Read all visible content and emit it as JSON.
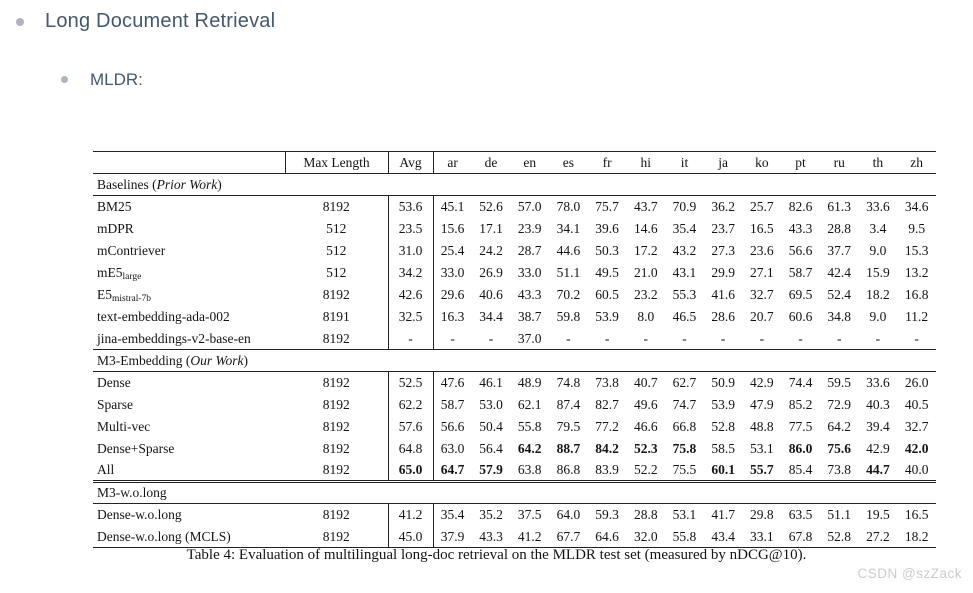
{
  "page": {
    "heading": "Long Document Retrieval",
    "subheading": "MLDR:",
    "watermark": "CSDN @szZack"
  },
  "table": {
    "caption": "Table 4: Evaluation of multilingual long-doc retrieval on the MLDR test set (measured by nDCG@10).",
    "header": {
      "model": "",
      "max_length": "Max Length",
      "avg": "Avg",
      "languages": [
        "ar",
        "de",
        "en",
        "es",
        "fr",
        "hi",
        "it",
        "ja",
        "ko",
        "pt",
        "ru",
        "th",
        "zh"
      ]
    },
    "sections": [
      {
        "label_pre": "Baselines (",
        "label_italic": "Prior Work",
        "label_post": ")",
        "double_rule_top": false,
        "rows": [
          {
            "name": "BM25",
            "sub": "",
            "max_length": "8192",
            "values": [
              "53.6",
              "45.1",
              "52.6",
              "57.0",
              "78.0",
              "75.7",
              "43.7",
              "70.9",
              "36.2",
              "25.7",
              "82.6",
              "61.3",
              "33.6",
              "34.6"
            ],
            "bold": []
          },
          {
            "name": "mDPR",
            "sub": "",
            "max_length": "512",
            "values": [
              "23.5",
              "15.6",
              "17.1",
              "23.9",
              "34.1",
              "39.6",
              "14.6",
              "35.4",
              "23.7",
              "16.5",
              "43.3",
              "28.8",
              "3.4",
              "9.5"
            ],
            "bold": []
          },
          {
            "name": "mContriever",
            "sub": "",
            "max_length": "512",
            "values": [
              "31.0",
              "25.4",
              "24.2",
              "28.7",
              "44.6",
              "50.3",
              "17.2",
              "43.2",
              "27.3",
              "23.6",
              "56.6",
              "37.7",
              "9.0",
              "15.3"
            ],
            "bold": []
          },
          {
            "name": "mE5",
            "sub": "large",
            "max_length": "512",
            "values": [
              "34.2",
              "33.0",
              "26.9",
              "33.0",
              "51.1",
              "49.5",
              "21.0",
              "43.1",
              "29.9",
              "27.1",
              "58.7",
              "42.4",
              "15.9",
              "13.2"
            ],
            "bold": []
          },
          {
            "name": "E5",
            "sub": "mistral-7b",
            "max_length": "8192",
            "values": [
              "42.6",
              "29.6",
              "40.6",
              "43.3",
              "70.2",
              "60.5",
              "23.2",
              "55.3",
              "41.6",
              "32.7",
              "69.5",
              "52.4",
              "18.2",
              "16.8"
            ],
            "bold": []
          },
          {
            "name": "text-embedding-ada-002",
            "sub": "",
            "max_length": "8191",
            "values": [
              "32.5",
              "16.3",
              "34.4",
              "38.7",
              "59.8",
              "53.9",
              "8.0",
              "46.5",
              "28.6",
              "20.7",
              "60.6",
              "34.8",
              "9.0",
              "11.2"
            ],
            "bold": []
          },
          {
            "name": "jina-embeddings-v2-base-en",
            "sub": "",
            "max_length": "8192",
            "values": [
              "-",
              "-",
              "-",
              "37.0",
              "-",
              "-",
              "-",
              "-",
              "-",
              "-",
              "-",
              "-",
              "-",
              "-"
            ],
            "bold": []
          }
        ]
      },
      {
        "label_pre": "M3-Embedding (",
        "label_italic": "Our Work",
        "label_post": ")",
        "double_rule_top": false,
        "rows": [
          {
            "name": "Dense",
            "sub": "",
            "max_length": "8192",
            "values": [
              "52.5",
              "47.6",
              "46.1",
              "48.9",
              "74.8",
              "73.8",
              "40.7",
              "62.7",
              "50.9",
              "42.9",
              "74.4",
              "59.5",
              "33.6",
              "26.0"
            ],
            "bold": []
          },
          {
            "name": "Sparse",
            "sub": "",
            "max_length": "8192",
            "values": [
              "62.2",
              "58.7",
              "53.0",
              "62.1",
              "87.4",
              "82.7",
              "49.6",
              "74.7",
              "53.9",
              "47.9",
              "85.2",
              "72.9",
              "40.3",
              "40.5"
            ],
            "bold": []
          },
          {
            "name": "Multi-vec",
            "sub": "",
            "max_length": "8192",
            "values": [
              "57.6",
              "56.6",
              "50.4",
              "55.8",
              "79.5",
              "77.2",
              "46.6",
              "66.8",
              "52.8",
              "48.8",
              "77.5",
              "64.2",
              "39.4",
              "32.7"
            ],
            "bold": []
          },
          {
            "name": "Dense+Sparse",
            "sub": "",
            "max_length": "8192",
            "values": [
              "64.8",
              "63.0",
              "56.4",
              "64.2",
              "88.7",
              "84.2",
              "52.3",
              "75.8",
              "58.5",
              "53.1",
              "86.0",
              "75.6",
              "42.9",
              "42.0"
            ],
            "bold": [
              3,
              4,
              5,
              6,
              7,
              10,
              11,
              13
            ]
          },
          {
            "name": "All",
            "sub": "",
            "max_length": "8192",
            "values": [
              "65.0",
              "64.7",
              "57.9",
              "63.8",
              "86.8",
              "83.9",
              "52.2",
              "75.5",
              "60.1",
              "55.7",
              "85.4",
              "73.8",
              "44.7",
              "40.0"
            ],
            "bold": [
              0,
              1,
              2,
              8,
              9,
              12
            ]
          }
        ]
      },
      {
        "label_pre": "M3-w.o.long",
        "label_italic": "",
        "label_post": "",
        "double_rule_top": true,
        "rows": [
          {
            "name": "Dense-w.o.long",
            "sub": "",
            "max_length": "8192",
            "values": [
              "41.2",
              "35.4",
              "35.2",
              "37.5",
              "64.0",
              "59.3",
              "28.8",
              "53.1",
              "41.7",
              "29.8",
              "63.5",
              "51.1",
              "19.5",
              "16.5"
            ],
            "bold": []
          },
          {
            "name": "Dense-w.o.long (MCLS)",
            "sub": "",
            "max_length": "8192",
            "values": [
              "45.0",
              "37.9",
              "43.3",
              "41.2",
              "67.7",
              "64.6",
              "32.0",
              "55.8",
              "43.4",
              "33.1",
              "67.8",
              "52.8",
              "27.2",
              "18.2"
            ],
            "bold": []
          }
        ]
      }
    ]
  }
}
